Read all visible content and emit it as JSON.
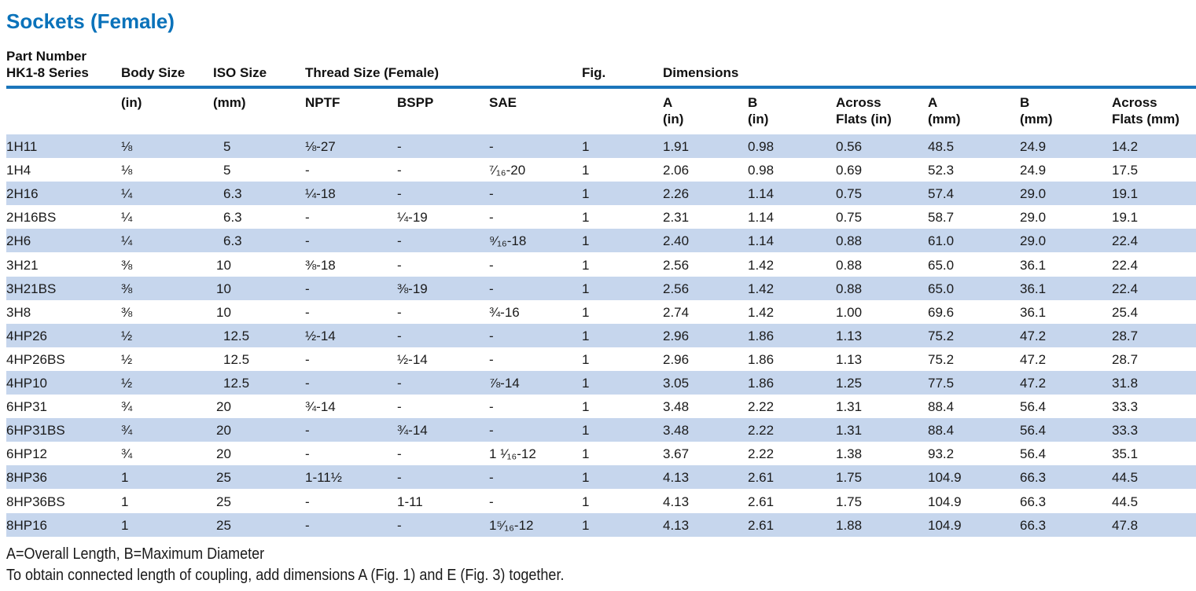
{
  "title": "Sockets (Female)",
  "header": {
    "part_number": [
      "Part Number",
      "HK1-8 Series"
    ],
    "body_size": "Body Size",
    "iso_size": "ISO Size",
    "thread_size": "Thread Size (Female)",
    "fig": "Fig.",
    "dimensions": "Dimensions"
  },
  "subheader": {
    "body_size": "(in)",
    "iso_size": "(mm)",
    "nptf": "NPTF",
    "bspp": "BSPP",
    "sae": "SAE",
    "a_in": [
      "A",
      "(in)"
    ],
    "b_in": [
      "B",
      "(in)"
    ],
    "af_in": [
      "Across",
      "Flats (in)"
    ],
    "a_mm": [
      "A",
      "(mm)"
    ],
    "b_mm": [
      "B",
      "(mm)"
    ],
    "af_mm": [
      "Across",
      "Flats (mm)"
    ]
  },
  "table": {
    "rows": [
      [
        "1H11",
        "⅛",
        "5",
        "⅛-27",
        "-",
        "-",
        "1",
        "1.91",
        "0.98",
        "0.56",
        "48.5",
        "24.9",
        "14.2"
      ],
      [
        "1H4",
        "⅛",
        "5",
        "-",
        "-",
        "⁷⁄₁₆-20",
        "1",
        "2.06",
        "0.98",
        "0.69",
        "52.3",
        "24.9",
        "17.5"
      ],
      [
        "2H16",
        "¼",
        "6.3",
        "¼-18",
        "-",
        "-",
        "1",
        "2.26",
        "1.14",
        "0.75",
        "57.4",
        "29.0",
        "19.1"
      ],
      [
        "2H16BS",
        "¼",
        "6.3",
        "-",
        "¼-19",
        "-",
        "1",
        "2.31",
        "1.14",
        "0.75",
        "58.7",
        "29.0",
        "19.1"
      ],
      [
        "2H6",
        "¼",
        "6.3",
        "-",
        "-",
        "⁹⁄₁₆-18",
        "1",
        "2.40",
        "1.14",
        "0.88",
        "61.0",
        "29.0",
        "22.4"
      ],
      [
        "3H21",
        "⅜",
        "10",
        "⅜-18",
        "-",
        "-",
        "1",
        "2.56",
        "1.42",
        "0.88",
        "65.0",
        "36.1",
        "22.4"
      ],
      [
        "3H21BS",
        "⅜",
        "10",
        "-",
        "⅜-19",
        "-",
        "1",
        "2.56",
        "1.42",
        "0.88",
        "65.0",
        "36.1",
        "22.4"
      ],
      [
        "3H8",
        "⅜",
        "10",
        "-",
        "-",
        "¾-16",
        "1",
        "2.74",
        "1.42",
        "1.00",
        "69.6",
        "36.1",
        "25.4"
      ],
      [
        "4HP26",
        "½",
        "12.5",
        "½-14",
        "-",
        "-",
        "1",
        "2.96",
        "1.86",
        "1.13",
        "75.2",
        "47.2",
        "28.7"
      ],
      [
        "4HP26BS",
        "½",
        "12.5",
        "-",
        "½-14",
        "-",
        "1",
        "2.96",
        "1.86",
        "1.13",
        "75.2",
        "47.2",
        "28.7"
      ],
      [
        "4HP10",
        "½",
        "12.5",
        "-",
        "-",
        "⅞-14",
        "1",
        "3.05",
        "1.86",
        "1.25",
        "77.5",
        "47.2",
        "31.8"
      ],
      [
        "6HP31",
        "¾",
        "20",
        "¾-14",
        "-",
        "-",
        "1",
        "3.48",
        "2.22",
        "1.31",
        "88.4",
        "56.4",
        "33.3"
      ],
      [
        "6HP31BS",
        "¾",
        "20",
        "-",
        "¾-14",
        "-",
        "1",
        "3.48",
        "2.22",
        "1.31",
        "88.4",
        "56.4",
        "33.3"
      ],
      [
        "6HP12",
        "¾",
        "20",
        "-",
        "-",
        "1 ¹⁄₁₆-12",
        "1",
        "3.67",
        "2.22",
        "1.38",
        "93.2",
        "56.4",
        "35.1"
      ],
      [
        "8HP36",
        "1",
        "25",
        "1-11½",
        "-",
        "-",
        "1",
        "4.13",
        "2.61",
        "1.75",
        "104.9",
        "66.3",
        "44.5"
      ],
      [
        "8HP36BS",
        "1",
        "25",
        "-",
        "1-11",
        "-",
        "1",
        "4.13",
        "2.61",
        "1.75",
        "104.9",
        "66.3",
        "44.5"
      ],
      [
        "8HP16",
        "1",
        "25",
        "-",
        "-",
        "1⁵⁄₁₆-12",
        "1",
        "4.13",
        "2.61",
        "1.88",
        "104.9",
        "66.3",
        "47.8"
      ]
    ]
  },
  "notes": [
    "A=Overall Length, B=Maximum Diameter",
    "To obtain connected length of coupling, add dimensions A (Fig. 1) and E (Fig. 3) together."
  ]
}
